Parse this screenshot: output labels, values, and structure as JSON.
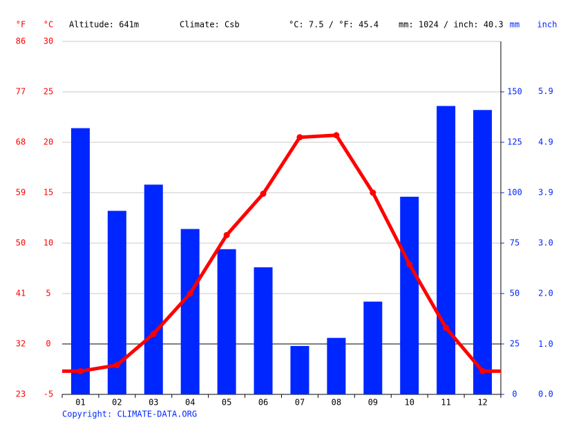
{
  "chart_data": {
    "type": "climate",
    "header": [
      "Altitude: 641m",
      "Climate: Csb",
      "°C: 7.5 / °F: 45.4",
      "mm: 1024 / inch: 40.3"
    ],
    "copyright": "Copyright: CLIMATE-DATA.ORG",
    "unit_f": "°F",
    "unit_c": "°C",
    "unit_mm": "mm",
    "unit_inch": "inch",
    "categories": [
      "01",
      "02",
      "03",
      "04",
      "05",
      "06",
      "07",
      "08",
      "09",
      "10",
      "11",
      "12"
    ],
    "series": [
      {
        "name": "Precipitation",
        "color": "#0026ff",
        "axis": "y2",
        "values": [
          132,
          91,
          104,
          82,
          72,
          63,
          24,
          28,
          46,
          98,
          143,
          141
        ]
      },
      {
        "name": "Temperature",
        "color": "#ff0000",
        "axis": "y",
        "values": [
          -2.7,
          -2.1,
          1.0,
          5.0,
          10.8,
          14.9,
          20.5,
          20.7,
          15.0,
          7.9,
          1.6,
          -2.7
        ]
      }
    ],
    "ylim": [
      -5,
      30
    ],
    "yticks": [
      -5,
      0,
      5,
      10,
      15,
      20,
      25,
      30
    ],
    "yflim": [
      23,
      86
    ],
    "yfticks": [
      23,
      32,
      41,
      50,
      59,
      68,
      77,
      86
    ],
    "y2lim": [
      0,
      175
    ],
    "y2ticks": [
      0,
      25,
      50,
      75,
      100,
      125,
      150
    ],
    "y3lim": [
      0,
      6.89
    ],
    "y3ticks": [
      {
        "value": 0,
        "label": "0.0"
      },
      {
        "value": 0.98,
        "label": "1.0"
      },
      {
        "value": 1.97,
        "label": "2.0"
      },
      {
        "value": 2.95,
        "label": "3.0"
      },
      {
        "value": 3.94,
        "label": "3.9"
      },
      {
        "value": 4.92,
        "label": "4.9"
      },
      {
        "value": 5.91,
        "label": "5.9"
      }
    ],
    "grid": true
  }
}
